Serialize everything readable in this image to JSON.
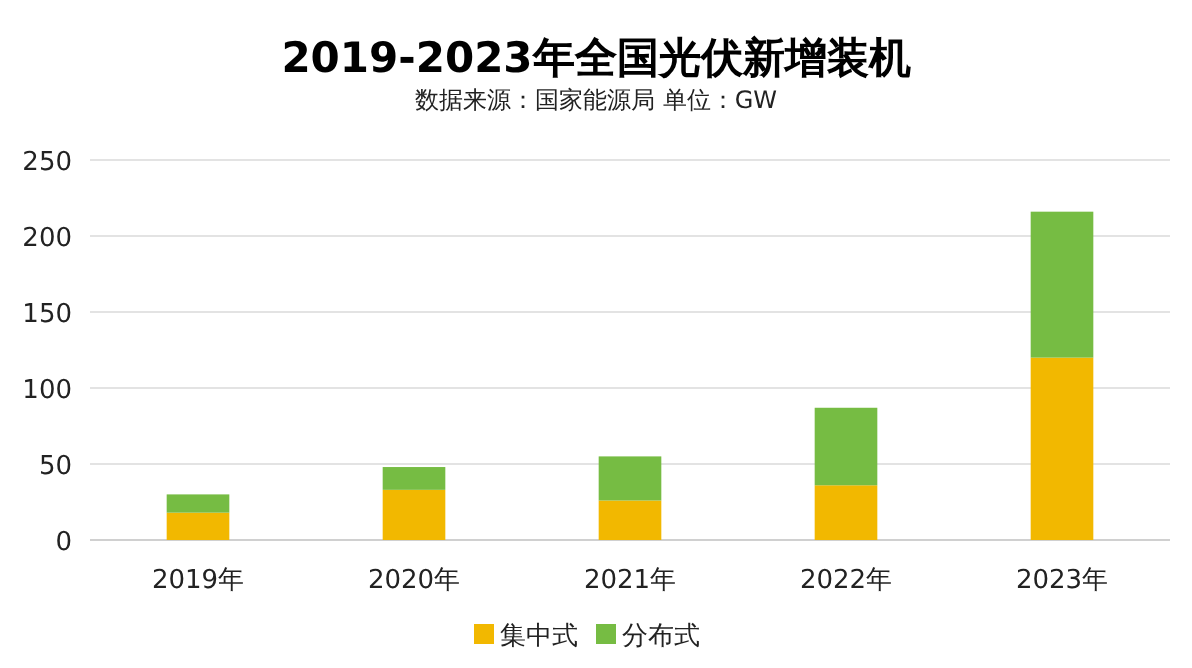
{
  "chart_data": {
    "type": "bar",
    "title": "2019-2023年全国光伏新增装机",
    "subtitle": "数据来源：国家能源局  单位：GW",
    "categories": [
      "2019年",
      "2020年",
      "2021年",
      "2022年",
      "2023年"
    ],
    "series": [
      {
        "name": "集中式",
        "color": "#f2b800",
        "values": [
          18,
          33,
          26,
          36,
          120
        ]
      },
      {
        "name": "分布式",
        "color": "#76bc43",
        "values": [
          12,
          15,
          29,
          51,
          96
        ]
      }
    ],
    "stacked": true,
    "ylim": [
      0,
      250
    ],
    "yticks": [
      0,
      50,
      100,
      150,
      200,
      250
    ],
    "grid": "y",
    "legend": "bottom"
  }
}
